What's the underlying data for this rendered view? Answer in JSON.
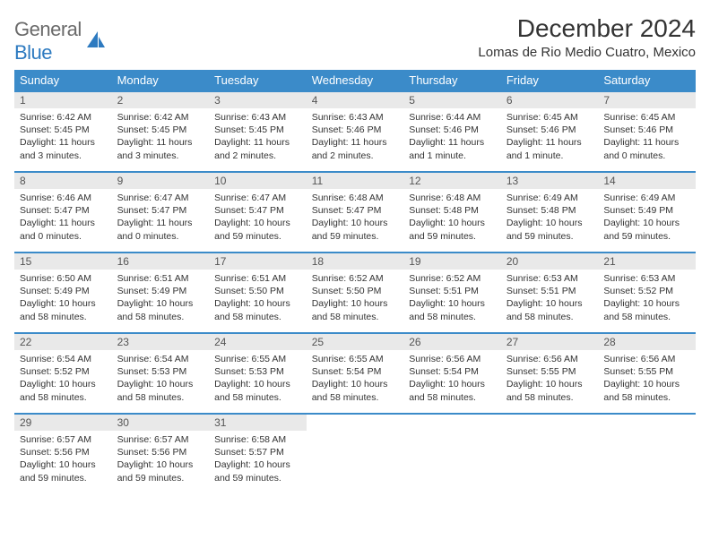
{
  "logo": {
    "text_part1": "General",
    "text_part2": "Blue"
  },
  "title": "December 2024",
  "location": "Lomas de Rio Medio Cuatro, Mexico",
  "colors": {
    "header_bg": "#3b8bc9",
    "header_text": "#ffffff",
    "daynum_bg": "#e9e9e9",
    "border": "#3b8bc9",
    "logo_gray": "#6a6a6a",
    "logo_blue": "#2d7ac0",
    "text": "#333333"
  },
  "weekdays": [
    "Sunday",
    "Monday",
    "Tuesday",
    "Wednesday",
    "Thursday",
    "Friday",
    "Saturday"
  ],
  "weeks": [
    [
      {
        "n": "1",
        "sr": "6:42 AM",
        "ss": "5:45 PM",
        "dl": "11 hours and 3 minutes."
      },
      {
        "n": "2",
        "sr": "6:42 AM",
        "ss": "5:45 PM",
        "dl": "11 hours and 3 minutes."
      },
      {
        "n": "3",
        "sr": "6:43 AM",
        "ss": "5:45 PM",
        "dl": "11 hours and 2 minutes."
      },
      {
        "n": "4",
        "sr": "6:43 AM",
        "ss": "5:46 PM",
        "dl": "11 hours and 2 minutes."
      },
      {
        "n": "5",
        "sr": "6:44 AM",
        "ss": "5:46 PM",
        "dl": "11 hours and 1 minute."
      },
      {
        "n": "6",
        "sr": "6:45 AM",
        "ss": "5:46 PM",
        "dl": "11 hours and 1 minute."
      },
      {
        "n": "7",
        "sr": "6:45 AM",
        "ss": "5:46 PM",
        "dl": "11 hours and 0 minutes."
      }
    ],
    [
      {
        "n": "8",
        "sr": "6:46 AM",
        "ss": "5:47 PM",
        "dl": "11 hours and 0 minutes."
      },
      {
        "n": "9",
        "sr": "6:47 AM",
        "ss": "5:47 PM",
        "dl": "11 hours and 0 minutes."
      },
      {
        "n": "10",
        "sr": "6:47 AM",
        "ss": "5:47 PM",
        "dl": "10 hours and 59 minutes."
      },
      {
        "n": "11",
        "sr": "6:48 AM",
        "ss": "5:47 PM",
        "dl": "10 hours and 59 minutes."
      },
      {
        "n": "12",
        "sr": "6:48 AM",
        "ss": "5:48 PM",
        "dl": "10 hours and 59 minutes."
      },
      {
        "n": "13",
        "sr": "6:49 AM",
        "ss": "5:48 PM",
        "dl": "10 hours and 59 minutes."
      },
      {
        "n": "14",
        "sr": "6:49 AM",
        "ss": "5:49 PM",
        "dl": "10 hours and 59 minutes."
      }
    ],
    [
      {
        "n": "15",
        "sr": "6:50 AM",
        "ss": "5:49 PM",
        "dl": "10 hours and 58 minutes."
      },
      {
        "n": "16",
        "sr": "6:51 AM",
        "ss": "5:49 PM",
        "dl": "10 hours and 58 minutes."
      },
      {
        "n": "17",
        "sr": "6:51 AM",
        "ss": "5:50 PM",
        "dl": "10 hours and 58 minutes."
      },
      {
        "n": "18",
        "sr": "6:52 AM",
        "ss": "5:50 PM",
        "dl": "10 hours and 58 minutes."
      },
      {
        "n": "19",
        "sr": "6:52 AM",
        "ss": "5:51 PM",
        "dl": "10 hours and 58 minutes."
      },
      {
        "n": "20",
        "sr": "6:53 AM",
        "ss": "5:51 PM",
        "dl": "10 hours and 58 minutes."
      },
      {
        "n": "21",
        "sr": "6:53 AM",
        "ss": "5:52 PM",
        "dl": "10 hours and 58 minutes."
      }
    ],
    [
      {
        "n": "22",
        "sr": "6:54 AM",
        "ss": "5:52 PM",
        "dl": "10 hours and 58 minutes."
      },
      {
        "n": "23",
        "sr": "6:54 AM",
        "ss": "5:53 PM",
        "dl": "10 hours and 58 minutes."
      },
      {
        "n": "24",
        "sr": "6:55 AM",
        "ss": "5:53 PM",
        "dl": "10 hours and 58 minutes."
      },
      {
        "n": "25",
        "sr": "6:55 AM",
        "ss": "5:54 PM",
        "dl": "10 hours and 58 minutes."
      },
      {
        "n": "26",
        "sr": "6:56 AM",
        "ss": "5:54 PM",
        "dl": "10 hours and 58 minutes."
      },
      {
        "n": "27",
        "sr": "6:56 AM",
        "ss": "5:55 PM",
        "dl": "10 hours and 58 minutes."
      },
      {
        "n": "28",
        "sr": "6:56 AM",
        "ss": "5:55 PM",
        "dl": "10 hours and 58 minutes."
      }
    ],
    [
      {
        "n": "29",
        "sr": "6:57 AM",
        "ss": "5:56 PM",
        "dl": "10 hours and 59 minutes."
      },
      {
        "n": "30",
        "sr": "6:57 AM",
        "ss": "5:56 PM",
        "dl": "10 hours and 59 minutes."
      },
      {
        "n": "31",
        "sr": "6:58 AM",
        "ss": "5:57 PM",
        "dl": "10 hours and 59 minutes."
      },
      null,
      null,
      null,
      null
    ]
  ],
  "labels": {
    "sunrise": "Sunrise:",
    "sunset": "Sunset:",
    "daylight": "Daylight:"
  }
}
